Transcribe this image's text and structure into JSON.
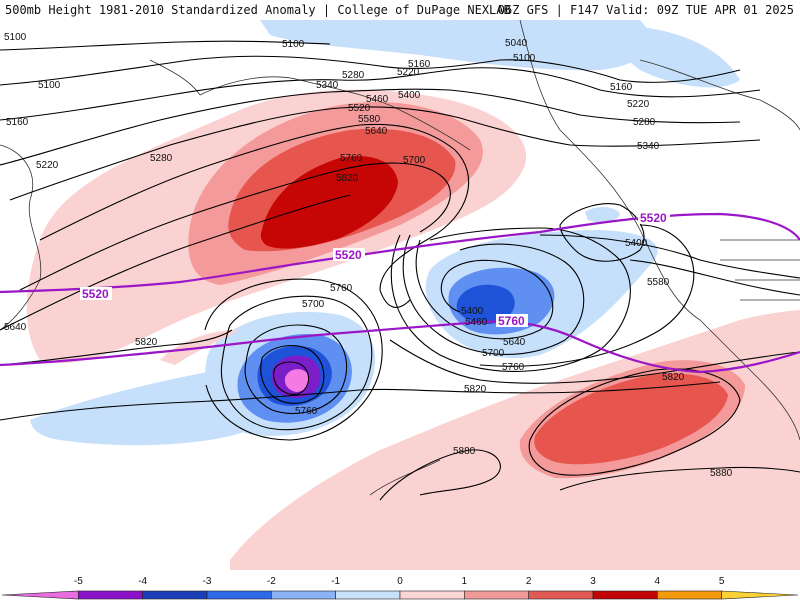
{
  "header": {
    "left": "500mb Height 1981-2010 Standardized Anomaly | College of DuPage NEXLAB",
    "right": "06Z GFS | F147 Valid: 09Z TUE APR 01 2025"
  },
  "map": {
    "black_contour_labels": [
      "5100",
      "5100",
      "5040",
      "5100",
      "5160",
      "5280",
      "5220",
      "5160",
      "5100",
      "5220",
      "5340",
      "5400",
      "5460",
      "5160",
      "5220",
      "5280",
      "5340",
      "5520",
      "5580",
      "5640",
      "5280",
      "5700",
      "5760",
      "5820",
      "5400",
      "5580",
      "5700",
      "5760",
      "5400",
      "5460",
      "5640",
      "5700",
      "5760",
      "5820",
      "5760",
      "5820",
      "5880",
      "5880",
      "5640",
      "5820"
    ],
    "purple_contour_labels": [
      "5520",
      "5520",
      "5520",
      "5760",
      "5880"
    ],
    "colors": {
      "anomaly_neg1": "#c6e0fb",
      "anomaly_neg2": "#5f8ff0",
      "anomaly_neg3": "#1e52d8",
      "anomaly_neg4": "#7b1ec9",
      "anomaly_neg5": "#f47ae4",
      "anomaly_pos1": "#fbd2d2",
      "anomaly_pos2": "#f59a9a",
      "anomaly_pos3": "#e6564f",
      "anomaly_pos4": "#c60505",
      "purple_contour": "#9a16c6",
      "black_contour": "#000000"
    }
  },
  "colorbar": {
    "ticks": [
      "-5",
      "-4",
      "-3",
      "-2",
      "-1",
      "0",
      "1",
      "2",
      "3",
      "4",
      "5"
    ],
    "colors": [
      "#e86ee0",
      "#8a12c8",
      "#1a3fb8",
      "#2f6ae6",
      "#8ab2f4",
      "#c8e1fb",
      "#fbd4d4",
      "#f29a9a",
      "#e25a55",
      "#c20606",
      "#f39a0e",
      "#fbd235"
    ]
  }
}
